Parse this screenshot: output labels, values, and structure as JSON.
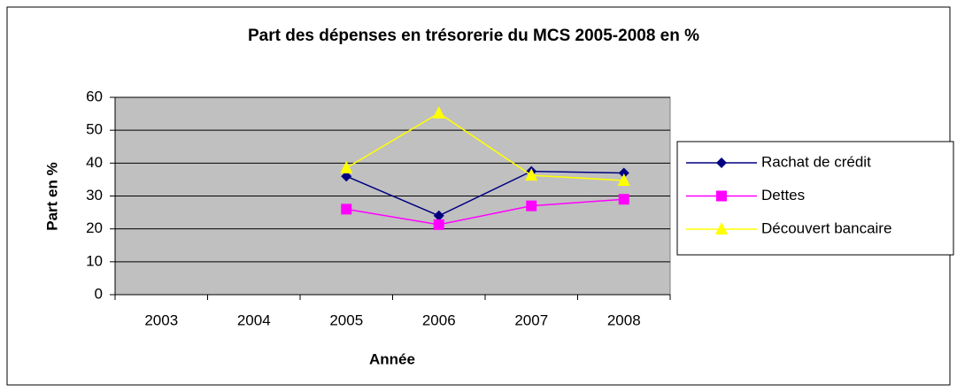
{
  "chart_data": {
    "type": "line",
    "title": "Part des dépenses en trésorerie du MCS 2005-2008 en %",
    "x_label": "Année",
    "y_label": "Part en %",
    "categories": [
      "2003",
      "2004",
      "2005",
      "2006",
      "2007",
      "2008"
    ],
    "series": [
      {
        "name": "Rachat de crédit",
        "color": "#000080",
        "marker": "diamond",
        "values": [
          null,
          null,
          36,
          24,
          37.5,
          37
        ]
      },
      {
        "name": "Dettes",
        "color": "#ff00ff",
        "marker": "square",
        "values": [
          null,
          null,
          26,
          21.3,
          27,
          29
        ]
      },
      {
        "name": "Découvert bancaire",
        "color": "#ffff00",
        "marker": "triangle",
        "values": [
          null,
          null,
          38.5,
          55.2,
          36.3,
          34.7
        ]
      }
    ],
    "ylim": [
      0,
      60
    ],
    "yticks": [
      0,
      10,
      20,
      30,
      40,
      50,
      60
    ],
    "grid": true,
    "legend": "right"
  }
}
